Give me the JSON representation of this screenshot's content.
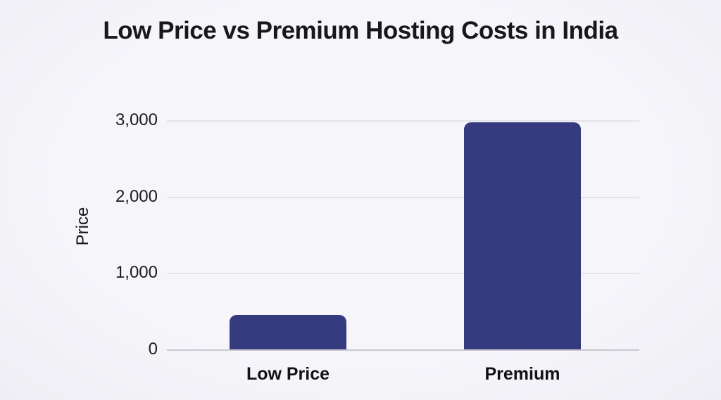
{
  "chart_data": {
    "type": "bar",
    "title": "Low Price vs Premium Hosting Costs in India",
    "ylabel": "Price",
    "xlabel": "",
    "categories": [
      "Low Price",
      "Premium"
    ],
    "values": [
      450,
      2970
    ],
    "yticks": [
      {
        "value": 0,
        "label": "0"
      },
      {
        "value": 1000,
        "label": "1,000"
      },
      {
        "value": 2000,
        "label": "2,000"
      },
      {
        "value": 3000,
        "label": "3,000"
      }
    ],
    "ylim": [
      0,
      3100
    ],
    "grid": "horizontal-only",
    "legend": "none",
    "bar_color": "#363b80",
    "background_color": "#f4f3f8",
    "title_color": "#18181c",
    "text_color": "#1b1b1f"
  }
}
